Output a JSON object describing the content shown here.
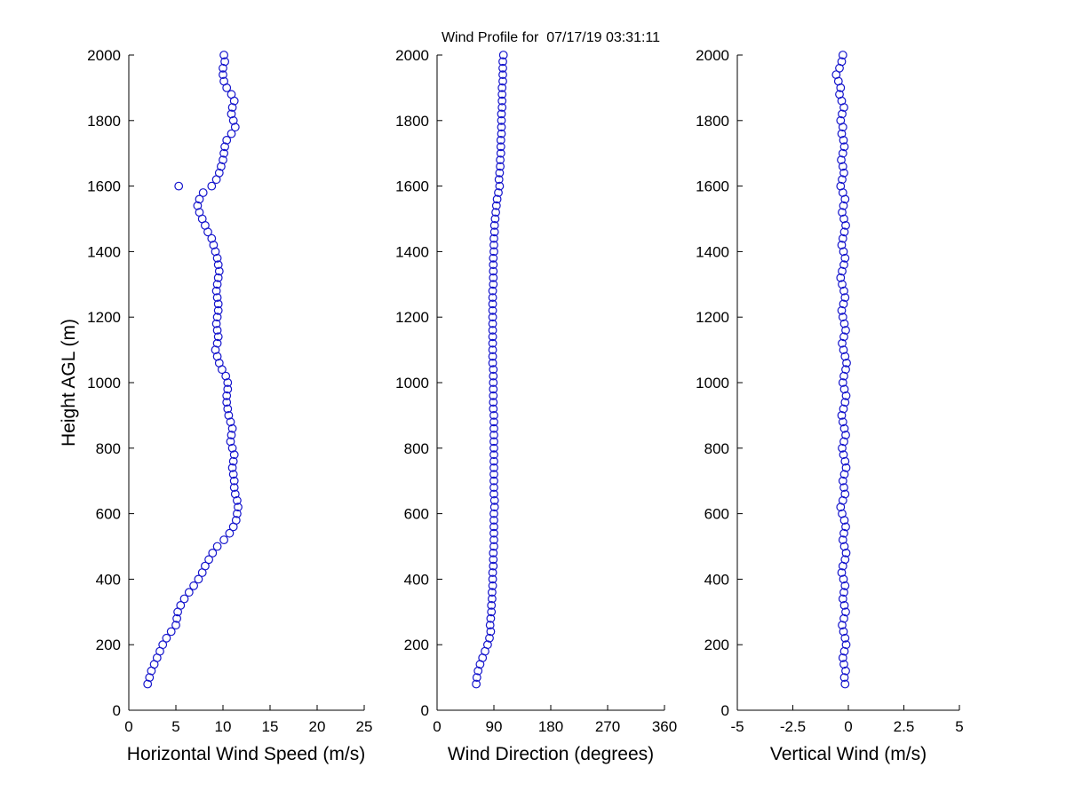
{
  "figure": {
    "title": "Wind Profile for  07/17/19 03:31:11",
    "marker_color": "#1414CC",
    "axis_color": "#000000"
  },
  "chart_data": [
    {
      "type": "scatter",
      "name": "horizontal-wind-speed-plot",
      "xlabel": "Horizontal Wind Speed (m/s)",
      "ylabel": "Height AGL (m)",
      "xlim": [
        0,
        25
      ],
      "ylim": [
        0,
        2000
      ],
      "xticks": [
        0,
        5,
        10,
        15,
        20,
        25
      ],
      "yticks": [
        0,
        200,
        400,
        600,
        800,
        1000,
        1200,
        1400,
        1600,
        1800,
        2000
      ],
      "x": [
        2.0,
        2.2,
        2.4,
        2.7,
        3.0,
        3.3,
        3.6,
        4.0,
        4.5,
        5.0,
        5.1,
        5.2,
        5.5,
        5.9,
        6.4,
        6.9,
        7.4,
        7.8,
        8.1,
        8.5,
        8.9,
        9.4,
        10.1,
        10.7,
        11.1,
        11.4,
        11.5,
        11.6,
        11.5,
        11.3,
        11.2,
        11.2,
        11.1,
        11.0,
        11.1,
        11.2,
        11.0,
        10.8,
        10.9,
        11.0,
        10.8,
        10.6,
        10.5,
        10.4,
        10.4,
        10.5,
        10.5,
        10.3,
        9.9,
        9.6,
        9.4,
        9.2,
        9.4,
        9.5,
        9.4,
        9.3,
        9.4,
        9.5,
        9.5,
        9.4,
        9.3,
        9.4,
        9.5,
        9.6,
        9.5,
        9.4,
        9.2,
        9.0,
        8.8,
        8.4,
        8.1,
        7.8,
        7.5,
        7.3,
        7.5,
        7.9,
        8.8,
        9.3,
        9.6,
        9.8,
        10.0,
        10.1,
        10.2,
        10.4,
        10.9,
        11.3,
        11.1,
        10.9,
        11.0,
        11.2,
        10.9,
        10.4,
        10.1,
        10.0,
        10.0,
        10.2,
        10.1,
        5.3
      ],
      "y": [
        80,
        100,
        120,
        140,
        160,
        180,
        200,
        220,
        240,
        260,
        280,
        300,
        320,
        340,
        360,
        380,
        400,
        420,
        440,
        460,
        480,
        500,
        520,
        540,
        560,
        580,
        600,
        620,
        640,
        660,
        680,
        700,
        720,
        740,
        760,
        780,
        800,
        820,
        840,
        860,
        880,
        900,
        920,
        940,
        960,
        980,
        1000,
        1020,
        1040,
        1060,
        1080,
        1100,
        1120,
        1140,
        1160,
        1180,
        1200,
        1220,
        1240,
        1260,
        1280,
        1300,
        1320,
        1340,
        1360,
        1380,
        1400,
        1420,
        1440,
        1460,
        1480,
        1500,
        1520,
        1540,
        1560,
        1580,
        1600,
        1620,
        1640,
        1660,
        1680,
        1700,
        1720,
        1740,
        1760,
        1780,
        1800,
        1820,
        1840,
        1860,
        1880,
        1900,
        1920,
        1940,
        1960,
        1980,
        2000,
        1600
      ]
    },
    {
      "type": "scatter",
      "name": "wind-direction-plot",
      "xlabel": "Wind Direction (degrees)",
      "ylabel": "",
      "xlim": [
        0,
        360
      ],
      "ylim": [
        0,
        2000
      ],
      "xticks": [
        0,
        90,
        180,
        270,
        360
      ],
      "yticks": [
        0,
        200,
        400,
        600,
        800,
        1000,
        1200,
        1400,
        1600,
        1800,
        2000
      ],
      "x": [
        62,
        63,
        65,
        68,
        72,
        76,
        80,
        83,
        85,
        84,
        85,
        86,
        86,
        87,
        87,
        88,
        88,
        88,
        89,
        89,
        89,
        90,
        90,
        90,
        90,
        90,
        90,
        91,
        91,
        90,
        90,
        90,
        90,
        90,
        90,
        90,
        90,
        90,
        90,
        90,
        90,
        90,
        89,
        89,
        89,
        89,
        89,
        89,
        89,
        88,
        88,
        88,
        88,
        88,
        88,
        88,
        88,
        88,
        88,
        88,
        88,
        89,
        89,
        89,
        89,
        89,
        90,
        90,
        90,
        91,
        91,
        92,
        93,
        94,
        95,
        97,
        99,
        98,
        99,
        100,
        100,
        101,
        101,
        101,
        102,
        102,
        102,
        102,
        103,
        103,
        103,
        103,
        104,
        104,
        104,
        104,
        105
      ],
      "y": [
        80,
        100,
        120,
        140,
        160,
        180,
        200,
        220,
        240,
        260,
        280,
        300,
        320,
        340,
        360,
        380,
        400,
        420,
        440,
        460,
        480,
        500,
        520,
        540,
        560,
        580,
        600,
        620,
        640,
        660,
        680,
        700,
        720,
        740,
        760,
        780,
        800,
        820,
        840,
        860,
        880,
        900,
        920,
        940,
        960,
        980,
        1000,
        1020,
        1040,
        1060,
        1080,
        1100,
        1120,
        1140,
        1160,
        1180,
        1200,
        1220,
        1240,
        1260,
        1280,
        1300,
        1320,
        1340,
        1360,
        1380,
        1400,
        1420,
        1440,
        1460,
        1480,
        1500,
        1520,
        1540,
        1560,
        1580,
        1600,
        1620,
        1640,
        1660,
        1680,
        1700,
        1720,
        1740,
        1760,
        1780,
        1800,
        1820,
        1840,
        1860,
        1880,
        1900,
        1920,
        1940,
        1960,
        1980,
        2000
      ]
    },
    {
      "type": "scatter",
      "name": "vertical-wind-plot",
      "xlabel": "Vertical Wind (m/s)",
      "ylabel": "",
      "xlim": [
        -5,
        5
      ],
      "ylim": [
        0,
        2000
      ],
      "xticks": [
        -5,
        -2.5,
        0,
        2.5,
        5
      ],
      "yticks": [
        0,
        200,
        400,
        600,
        800,
        1000,
        1200,
        1400,
        1600,
        1800,
        2000
      ],
      "x": [
        -0.15,
        -0.18,
        -0.12,
        -0.2,
        -0.25,
        -0.18,
        -0.1,
        -0.15,
        -0.22,
        -0.28,
        -0.2,
        -0.12,
        -0.18,
        -0.25,
        -0.2,
        -0.15,
        -0.22,
        -0.3,
        -0.25,
        -0.15,
        -0.1,
        -0.18,
        -0.25,
        -0.2,
        -0.12,
        -0.18,
        -0.28,
        -0.35,
        -0.25,
        -0.15,
        -0.2,
        -0.25,
        -0.18,
        -0.1,
        -0.15,
        -0.22,
        -0.28,
        -0.2,
        -0.12,
        -0.18,
        -0.25,
        -0.3,
        -0.22,
        -0.15,
        -0.1,
        -0.18,
        -0.25,
        -0.2,
        -0.12,
        -0.08,
        -0.15,
        -0.22,
        -0.28,
        -0.2,
        -0.12,
        -0.18,
        -0.25,
        -0.3,
        -0.22,
        -0.15,
        -0.2,
        -0.28,
        -0.35,
        -0.28,
        -0.2,
        -0.15,
        -0.22,
        -0.3,
        -0.25,
        -0.18,
        -0.12,
        -0.2,
        -0.28,
        -0.22,
        -0.15,
        -0.25,
        -0.35,
        -0.28,
        -0.2,
        -0.25,
        -0.32,
        -0.25,
        -0.18,
        -0.22,
        -0.3,
        -0.25,
        -0.35,
        -0.28,
        -0.2,
        -0.3,
        -0.4,
        -0.35,
        -0.45,
        -0.55,
        -0.4,
        -0.3,
        -0.25
      ],
      "y": [
        80,
        100,
        120,
        140,
        160,
        180,
        200,
        220,
        240,
        260,
        280,
        300,
        320,
        340,
        360,
        380,
        400,
        420,
        440,
        460,
        480,
        500,
        520,
        540,
        560,
        580,
        600,
        620,
        640,
        660,
        680,
        700,
        720,
        740,
        760,
        780,
        800,
        820,
        840,
        860,
        880,
        900,
        920,
        940,
        960,
        980,
        1000,
        1020,
        1040,
        1060,
        1080,
        1100,
        1120,
        1140,
        1160,
        1180,
        1200,
        1220,
        1240,
        1260,
        1280,
        1300,
        1320,
        1340,
        1360,
        1380,
        1400,
        1420,
        1440,
        1460,
        1480,
        1500,
        1520,
        1540,
        1560,
        1580,
        1600,
        1620,
        1640,
        1660,
        1680,
        1700,
        1720,
        1740,
        1760,
        1780,
        1800,
        1820,
        1840,
        1860,
        1880,
        1900,
        1920,
        1940,
        1960,
        1980,
        2000
      ]
    }
  ]
}
